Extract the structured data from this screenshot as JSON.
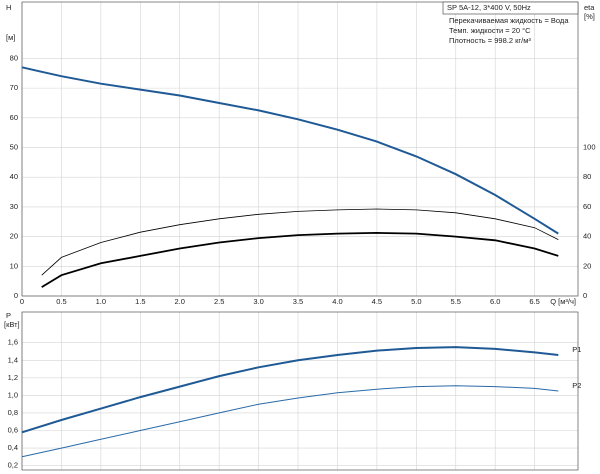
{
  "chart_data": [
    {
      "type": "line",
      "y_label": "H",
      "y_unit": "[м]",
      "y2_label": "eta",
      "y2_unit": "[%]",
      "x_label": "Q [м³/ч]",
      "info_title": "SP 5A-12, 3*400 V, 50Hz",
      "info_lines": [
        "Перекачиваемая жидкость = Вода",
        "Темп. жидкости = 20 °C",
        "Плотность = 998.2 кг/м³"
      ],
      "x": [
        0,
        0.25,
        0.5,
        1,
        1.5,
        2,
        2.5,
        3,
        3.5,
        4,
        4.5,
        5,
        5.5,
        6,
        6.5,
        6.8
      ],
      "xlim": [
        0,
        7.05
      ],
      "xticks": [
        0,
        0.5,
        {
          "value": 1,
          "label": "1.0"
        },
        1.5,
        {
          "value": 2,
          "label": "2.0"
        },
        2.5,
        {
          "value": 3,
          "label": "3.0"
        },
        3.5,
        {
          "value": 4,
          "label": "4.0"
        },
        4.5,
        {
          "value": 5,
          "label": "5.0"
        },
        5.5,
        {
          "value": 6,
          "label": "6.0"
        },
        6.5
      ],
      "ylim": [
        0,
        99
      ],
      "yticks": [
        0,
        10,
        20,
        30,
        40,
        50,
        60,
        70,
        80
      ],
      "y2lim": [
        0,
        198
      ],
      "y2ticks": [
        0,
        20,
        40,
        60,
        80,
        100
      ],
      "grid": true,
      "series": [
        {
          "color": "#1f5a96",
          "width": 2,
          "values": [
            77,
            75.5,
            74,
            71.5,
            69.5,
            67.5,
            65,
            62.5,
            59.5,
            56,
            52,
            47,
            41,
            34,
            26,
            21
          ]
        },
        {
          "color": "#000000",
          "width": 0.8,
          "axis": "y2",
          "values": [
            null,
            14,
            26,
            36,
            43,
            48,
            52,
            55,
            57,
            58,
            58.6,
            58,
            56,
            52,
            46,
            38
          ]
        },
        {
          "color": "#000000",
          "width": 1.8,
          "axis": "y2",
          "values": [
            null,
            6,
            14,
            22,
            27,
            32,
            36,
            39,
            41,
            42,
            42.5,
            42,
            40,
            37.5,
            32,
            27
          ]
        }
      ]
    },
    {
      "type": "line",
      "y_label": "P",
      "y_unit": "[кВт]",
      "x": [
        0,
        0.5,
        1,
        1.5,
        2,
        2.5,
        3,
        3.5,
        4,
        4.5,
        5,
        5.5,
        6,
        6.5,
        6.8
      ],
      "xlim": [
        0,
        7.05
      ],
      "ylim": [
        0.15,
        1.95
      ],
      "yticks": [
        {
          "value": 0.2,
          "label": "0,2"
        },
        {
          "value": 0.4,
          "label": "0,4"
        },
        {
          "value": 0.6,
          "label": "0,6"
        },
        {
          "value": 0.8,
          "label": "0,8"
        },
        {
          "value": 1.0,
          "label": "1,0"
        },
        {
          "value": 1.2,
          "label": "1,2"
        },
        {
          "value": 1.4,
          "label": "1,4"
        },
        {
          "value": 1.6,
          "label": "1,6"
        }
      ],
      "grid": true,
      "series": [
        {
          "name": "P1",
          "color": "#1f5a96",
          "width": 2,
          "values": [
            0.58,
            0.72,
            0.85,
            0.98,
            1.1,
            1.22,
            1.32,
            1.4,
            1.46,
            1.51,
            1.54,
            1.55,
            1.53,
            1.49,
            1.46
          ]
        },
        {
          "name": "P2",
          "color": "#2a6aa8",
          "width": 1,
          "values": [
            0.3,
            0.4,
            0.5,
            0.6,
            0.7,
            0.8,
            0.9,
            0.97,
            1.03,
            1.07,
            1.1,
            1.11,
            1.1,
            1.08,
            1.05
          ]
        }
      ]
    }
  ]
}
